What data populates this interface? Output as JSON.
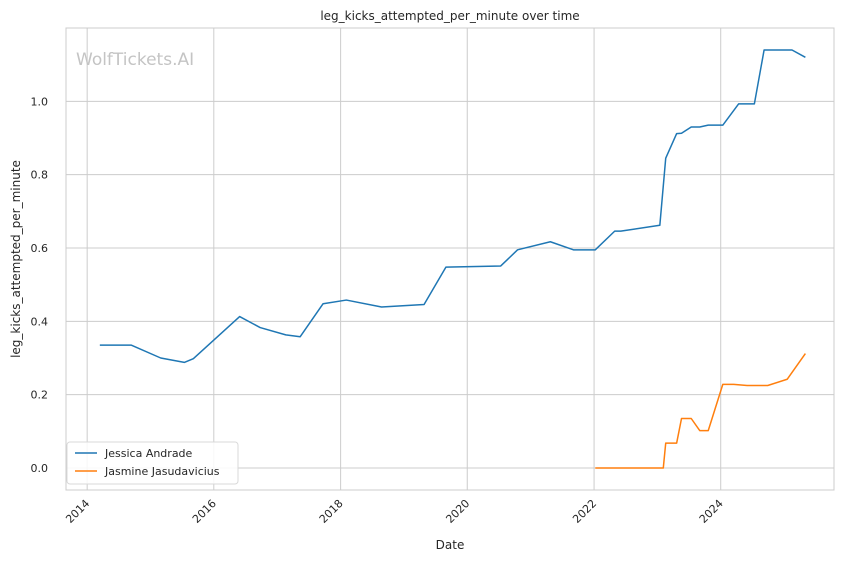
{
  "watermark": "WolfTickets.AI",
  "colors": {
    "background": "#ffffff",
    "grid": "#cccccc",
    "axes_edge": "#cccccc",
    "Jessica Andrade": "#1f77b4",
    "Jasmine Jasudavicius": "#ff7f0e"
  },
  "chart_data": {
    "type": "line",
    "title": "leg_kicks_attempted_per_minute over time",
    "xlabel": "Date",
    "ylabel": "leg_kicks_attempted_per_minute",
    "x_scale": "date",
    "xlim": [
      "2013-09-01",
      "2025-10-15"
    ],
    "ylim": [
      -0.06,
      1.2
    ],
    "x_ticks": [
      "2014",
      "2016",
      "2018",
      "2020",
      "2022",
      "2024"
    ],
    "y_ticks": [
      0.0,
      0.2,
      0.4,
      0.6,
      0.8,
      1.0
    ],
    "grid": true,
    "legend_position": "lower-left",
    "series": [
      {
        "name": "Jessica Andrade",
        "color": "#1f77b4",
        "points": [
          [
            "2014-03-15",
            0.335
          ],
          [
            "2014-09-13",
            0.335
          ],
          [
            "2015-03-01",
            0.3
          ],
          [
            "2015-07-15",
            0.288
          ],
          [
            "2015-09-05",
            0.298
          ],
          [
            "2016-05-29",
            0.413
          ],
          [
            "2016-09-24",
            0.383
          ],
          [
            "2017-02-19",
            0.363
          ],
          [
            "2017-05-13",
            0.358
          ],
          [
            "2017-09-22",
            0.448
          ],
          [
            "2018-02-03",
            0.458
          ],
          [
            "2018-08-25",
            0.439
          ],
          [
            "2019-04-27",
            0.446
          ],
          [
            "2019-08-31",
            0.548
          ],
          [
            "2020-07-12",
            0.551
          ],
          [
            "2020-10-17",
            0.595
          ],
          [
            "2021-04-24",
            0.617
          ],
          [
            "2021-09-04",
            0.595
          ],
          [
            "2022-01-08",
            0.595
          ],
          [
            "2022-04-30",
            0.646
          ],
          [
            "2022-06-04",
            0.646
          ],
          [
            "2023-01-15",
            0.662
          ],
          [
            "2023-02-18",
            0.845
          ],
          [
            "2023-04-22",
            0.912
          ],
          [
            "2023-05-20",
            0.913
          ],
          [
            "2023-07-15",
            0.93
          ],
          [
            "2023-09-02",
            0.93
          ],
          [
            "2023-10-21",
            0.935
          ],
          [
            "2024-01-13",
            0.935
          ],
          [
            "2024-04-13",
            0.993
          ],
          [
            "2024-07-13",
            0.993
          ],
          [
            "2024-09-07",
            1.14
          ],
          [
            "2025-02-15",
            1.14
          ],
          [
            "2025-05-03",
            1.12
          ]
        ]
      },
      {
        "name": "Jasmine Jasudavicius",
        "color": "#ff7f0e",
        "points": [
          [
            "2022-01-08",
            0.0
          ],
          [
            "2023-02-04",
            0.0
          ],
          [
            "2023-02-18",
            0.068
          ],
          [
            "2023-04-22",
            0.068
          ],
          [
            "2023-05-20",
            0.135
          ],
          [
            "2023-07-15",
            0.135
          ],
          [
            "2023-09-02",
            0.102
          ],
          [
            "2023-10-21",
            0.102
          ],
          [
            "2024-01-13",
            0.228
          ],
          [
            "2024-03-16",
            0.228
          ],
          [
            "2024-06-01",
            0.225
          ],
          [
            "2024-09-28",
            0.225
          ],
          [
            "2025-01-18",
            0.242
          ],
          [
            "2025-05-03",
            0.312
          ]
        ]
      }
    ]
  }
}
